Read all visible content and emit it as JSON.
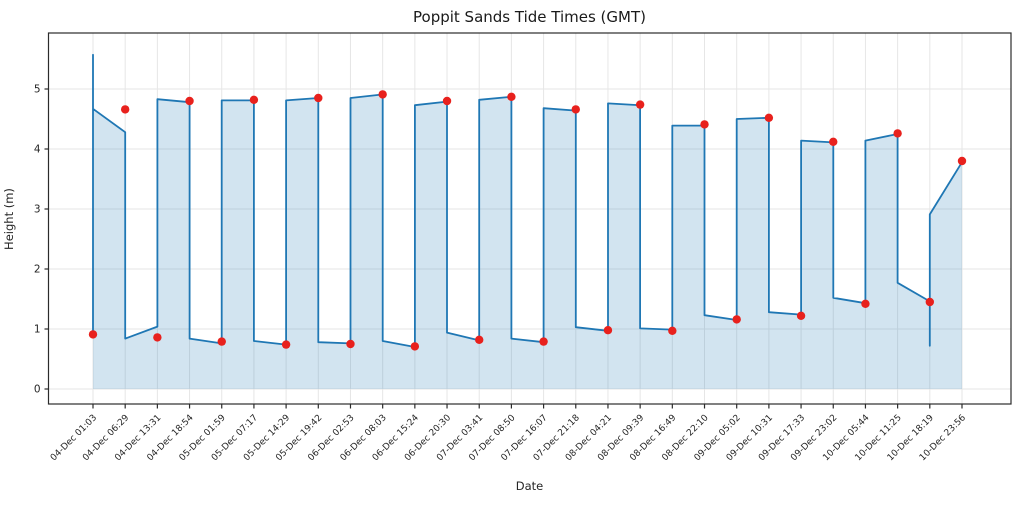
{
  "chart_data": {
    "type": "line",
    "title": "Poppit Sands Tide Times (GMT)",
    "xlabel": "Date",
    "ylabel": "Height (m)",
    "yticks": [
      0,
      1,
      2,
      3,
      4,
      5
    ],
    "ylim": [
      -0.25,
      5.93
    ],
    "grid": true,
    "legend_position": "none",
    "categories": [
      "04-Dec 01:03",
      "04-Dec 06:29",
      "04-Dec 13:31",
      "04-Dec 18:54",
      "05-Dec 01:59",
      "05-Dec 07:17",
      "05-Dec 14:29",
      "05-Dec 19:42",
      "06-Dec 02:53",
      "06-Dec 08:03",
      "06-Dec 15:24",
      "06-Dec 20:30",
      "07-Dec 03:41",
      "07-Dec 08:50",
      "07-Dec 16:07",
      "07-Dec 21:18",
      "08-Dec 04:21",
      "08-Dec 09:39",
      "08-Dec 16:49",
      "08-Dec 22:10",
      "09-Dec 05:02",
      "09-Dec 10:31",
      "09-Dec 17:33",
      "09-Dec 23:02",
      "10-Dec 05:44",
      "10-Dec 11:25",
      "10-Dec 18:19",
      "10-Dec 23:56"
    ],
    "events": [
      {
        "time": "04-Dec 01:03",
        "height": 0.91,
        "type": "low"
      },
      {
        "time": "04-Dec 06:29",
        "height": 4.66,
        "type": "high"
      },
      {
        "time": "04-Dec 13:31",
        "height": 0.86,
        "type": "low"
      },
      {
        "time": "04-Dec 18:54",
        "height": 4.8,
        "type": "high"
      },
      {
        "time": "05-Dec 01:59",
        "height": 0.79,
        "type": "low"
      },
      {
        "time": "05-Dec 07:17",
        "height": 4.82,
        "type": "high"
      },
      {
        "time": "05-Dec 14:29",
        "height": 0.74,
        "type": "low"
      },
      {
        "time": "05-Dec 19:42",
        "height": 4.85,
        "type": "high"
      },
      {
        "time": "06-Dec 02:53",
        "height": 0.75,
        "type": "low"
      },
      {
        "time": "06-Dec 08:03",
        "height": 4.91,
        "type": "high"
      },
      {
        "time": "06-Dec 15:24",
        "height": 0.71,
        "type": "low"
      },
      {
        "time": "06-Dec 20:30",
        "height": 4.8,
        "type": "high"
      },
      {
        "time": "07-Dec 03:41",
        "height": 0.82,
        "type": "low"
      },
      {
        "time": "07-Dec 08:50",
        "height": 4.87,
        "type": "high"
      },
      {
        "time": "07-Dec 16:07",
        "height": 0.79,
        "type": "low"
      },
      {
        "time": "07-Dec 21:18",
        "height": 4.66,
        "type": "high"
      },
      {
        "time": "08-Dec 04:21",
        "height": 0.98,
        "type": "low"
      },
      {
        "time": "08-Dec 09:39",
        "height": 4.74,
        "type": "high"
      },
      {
        "time": "08-Dec 16:49",
        "height": 0.97,
        "type": "low"
      },
      {
        "time": "08-Dec 22:10",
        "height": 4.41,
        "type": "high"
      },
      {
        "time": "09-Dec 05:02",
        "height": 1.16,
        "type": "low"
      },
      {
        "time": "09-Dec 10:31",
        "height": 4.52,
        "type": "high"
      },
      {
        "time": "09-Dec 17:33",
        "height": 1.22,
        "type": "low"
      },
      {
        "time": "09-Dec 23:02",
        "height": 4.12,
        "type": "high"
      },
      {
        "time": "10-Dec 05:44",
        "height": 1.42,
        "type": "low"
      },
      {
        "time": "10-Dec 11:25",
        "height": 4.26,
        "type": "high"
      },
      {
        "time": "10-Dec 18:19",
        "height": 1.45,
        "type": "low"
      },
      {
        "time": "10-Dec 23:56",
        "height": 3.8,
        "type": "high"
      }
    ],
    "line_vertices_index_height": [
      [
        0,
        5.57
      ],
      [
        0,
        0.91
      ],
      [
        0,
        4.67
      ],
      [
        1,
        4.28
      ],
      [
        1,
        0.84
      ],
      [
        2,
        1.04
      ],
      [
        2,
        4.83
      ],
      [
        3,
        4.78
      ],
      [
        3,
        0.84
      ],
      [
        4,
        0.76
      ],
      [
        4,
        4.81
      ],
      [
        5,
        4.81
      ],
      [
        5,
        0.8
      ],
      [
        6,
        0.74
      ],
      [
        6,
        4.81
      ],
      [
        7,
        4.85
      ],
      [
        7,
        0.78
      ],
      [
        8,
        0.76
      ],
      [
        8,
        4.85
      ],
      [
        9,
        4.91
      ],
      [
        9,
        0.8
      ],
      [
        10,
        0.7
      ],
      [
        10,
        4.73
      ],
      [
        11,
        4.79
      ],
      [
        11,
        0.94
      ],
      [
        12,
        0.81
      ],
      [
        12,
        4.82
      ],
      [
        13,
        4.87
      ],
      [
        13,
        0.84
      ],
      [
        14,
        0.78
      ],
      [
        14,
        4.68
      ],
      [
        15,
        4.64
      ],
      [
        15,
        1.03
      ],
      [
        16,
        0.97
      ],
      [
        16,
        4.76
      ],
      [
        17,
        4.73
      ],
      [
        17,
        1.01
      ],
      [
        18,
        0.99
      ],
      [
        18,
        4.39
      ],
      [
        19,
        4.39
      ],
      [
        19,
        1.23
      ],
      [
        20,
        1.15
      ],
      [
        20,
        4.5
      ],
      [
        21,
        4.52
      ],
      [
        21,
        1.28
      ],
      [
        22,
        1.24
      ],
      [
        22,
        4.14
      ],
      [
        23,
        4.11
      ],
      [
        23,
        1.52
      ],
      [
        24,
        1.43
      ],
      [
        24,
        4.14
      ],
      [
        25,
        4.25
      ],
      [
        25,
        1.77
      ],
      [
        26,
        1.46
      ],
      [
        26,
        0.72
      ],
      [
        26,
        2.91
      ],
      [
        27,
        3.78
      ]
    ],
    "colors": {
      "line": "#1f77b4",
      "fill": "#1f77b4",
      "fill_opacity": 0.2,
      "marker": "#e8211d",
      "grid": "#e6e6e6",
      "spine": "#2b2b2b",
      "tick_text": "#262626"
    }
  }
}
